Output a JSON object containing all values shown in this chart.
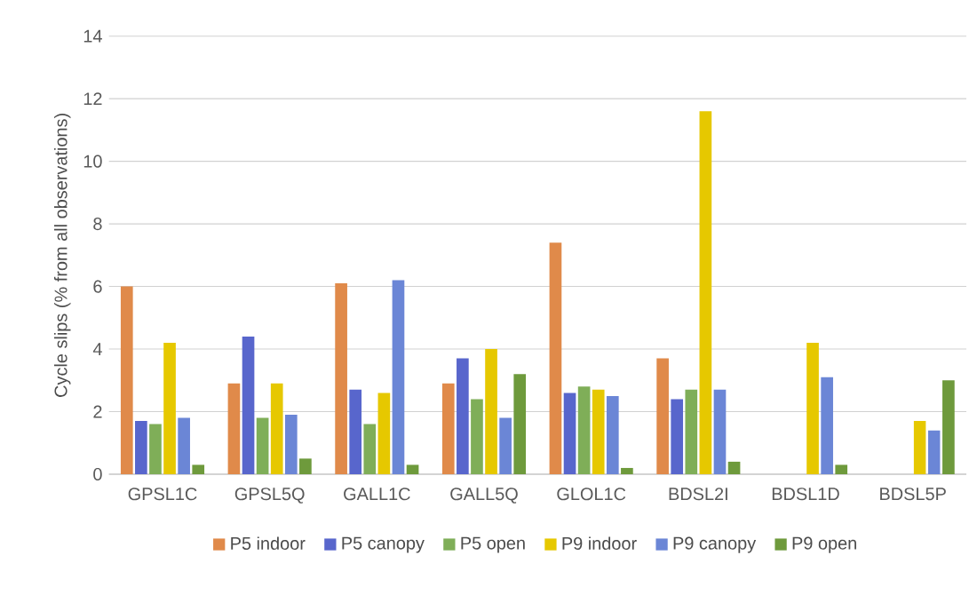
{
  "chart_data": {
    "type": "bar",
    "ylabel": "Cycle slips (% from all observations)",
    "categories": [
      "GPSL1C",
      "GPSL5Q",
      "GALL1C",
      "GALL5Q",
      "GLOL1C",
      "BDSL2I",
      "BDSL1D",
      "BDSL5P"
    ],
    "series": [
      {
        "name": "P5 indoor",
        "color": "#e08a4a",
        "values": [
          6.0,
          2.9,
          6.1,
          2.9,
          7.4,
          3.7,
          null,
          null
        ]
      },
      {
        "name": "P5 canopy",
        "color": "#5866cc",
        "values": [
          1.7,
          4.4,
          2.7,
          3.7,
          2.6,
          2.4,
          null,
          null
        ]
      },
      {
        "name": "P5 open",
        "color": "#7fae58",
        "values": [
          1.6,
          1.8,
          1.6,
          2.4,
          2.8,
          2.7,
          null,
          null
        ]
      },
      {
        "name": "P9 indoor",
        "color": "#e6c800",
        "values": [
          4.2,
          2.9,
          2.6,
          4.0,
          2.7,
          11.6,
          4.2,
          1.7
        ]
      },
      {
        "name": "P9 canopy",
        "color": "#6b86d6",
        "values": [
          1.8,
          1.9,
          6.2,
          1.8,
          2.5,
          2.7,
          3.1,
          1.4
        ]
      },
      {
        "name": "P9 open",
        "color": "#6e9a3c",
        "values": [
          0.3,
          0.5,
          0.3,
          3.2,
          0.2,
          0.4,
          0.3,
          3.0
        ]
      }
    ],
    "ylim": [
      0,
      14
    ],
    "yticks": [
      0,
      2,
      4,
      6,
      8,
      10,
      12,
      14
    ],
    "grid": "y",
    "legend": "bottom"
  }
}
